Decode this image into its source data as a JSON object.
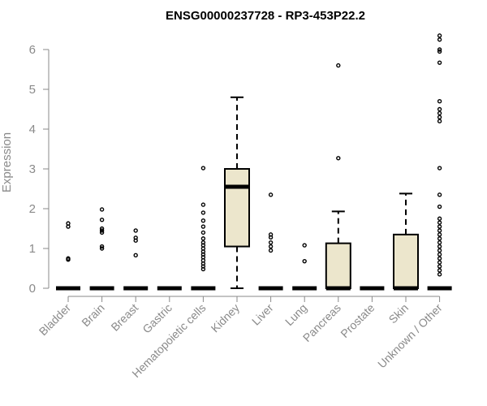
{
  "chart_data": {
    "type": "boxplot",
    "title": "ENSG00000237728 - RP3-453P22.2",
    "xlabel": "",
    "ylabel": "Expression",
    "ylim": [
      0,
      6.5
    ],
    "yticks": [
      0,
      1,
      2,
      3,
      4,
      5,
      6
    ],
    "grid": false,
    "box_fill": "#ece6cc",
    "categories": [
      "Bladder",
      "Brain",
      "Breast",
      "Gastric",
      "Hematopoietic cells",
      "Kidney",
      "Liver",
      "Lung",
      "Pancreas",
      "Prostate",
      "Skin",
      "Unknown / Other"
    ],
    "boxes": [
      {
        "category": "Bladder",
        "q1": 0,
        "median": 0,
        "q3": 0,
        "whisker_low": 0,
        "whisker_high": 0,
        "outliers": [
          0.72,
          0.75,
          1.55,
          1.63
        ]
      },
      {
        "category": "Brain",
        "q1": 0,
        "median": 0,
        "q3": 0,
        "whisker_low": 0,
        "whisker_high": 0,
        "outliers": [
          1.0,
          1.05,
          1.4,
          1.45,
          1.5,
          1.72,
          1.98
        ]
      },
      {
        "category": "Breast",
        "q1": 0,
        "median": 0,
        "q3": 0,
        "whisker_low": 0,
        "whisker_high": 0,
        "outliers": [
          0.83,
          1.2,
          1.27,
          1.45
        ]
      },
      {
        "category": "Gastric",
        "q1": 0,
        "median": 0,
        "q3": 0,
        "whisker_low": 0,
        "whisker_high": 0,
        "outliers": []
      },
      {
        "category": "Hematopoietic cells",
        "q1": 0,
        "median": 0,
        "q3": 0,
        "whisker_low": 0,
        "whisker_high": 0,
        "outliers": [
          0.48,
          0.55,
          0.62,
          0.7,
          0.78,
          0.85,
          0.92,
          1.0,
          1.08,
          1.15,
          1.25,
          1.4,
          1.55,
          1.7,
          1.9,
          2.1,
          3.02
        ]
      },
      {
        "category": "Kidney",
        "q1": 1.05,
        "median": 2.55,
        "q3": 3.0,
        "whisker_low": 0,
        "whisker_high": 4.8,
        "outliers": []
      },
      {
        "category": "Liver",
        "q1": 0,
        "median": 0,
        "q3": 0,
        "whisker_low": 0,
        "whisker_high": 0,
        "outliers": [
          0.95,
          1.05,
          1.15,
          1.28,
          1.35,
          2.35
        ]
      },
      {
        "category": "Lung",
        "q1": 0,
        "median": 0,
        "q3": 0,
        "whisker_low": 0,
        "whisker_high": 0,
        "outliers": [
          0.68,
          1.08
        ]
      },
      {
        "category": "Pancreas",
        "q1": 0,
        "median": 0,
        "q3": 1.13,
        "whisker_low": 0,
        "whisker_high": 1.93,
        "outliers": [
          3.27,
          5.6
        ]
      },
      {
        "category": "Prostate",
        "q1": 0,
        "median": 0,
        "q3": 0,
        "whisker_low": 0,
        "whisker_high": 0,
        "outliers": []
      },
      {
        "category": "Skin",
        "q1": 0,
        "median": 0,
        "q3": 1.35,
        "whisker_low": 0,
        "whisker_high": 2.38,
        "outliers": []
      },
      {
        "category": "Unknown / Other",
        "q1": 0,
        "median": 0,
        "q3": 0,
        "whisker_low": 0,
        "whisker_high": 0,
        "outliers": [
          0.35,
          0.45,
          0.55,
          0.65,
          0.75,
          0.85,
          0.95,
          1.05,
          1.15,
          1.25,
          1.35,
          1.45,
          1.55,
          1.65,
          1.75,
          2.05,
          2.35,
          3.02,
          4.2,
          4.3,
          4.4,
          4.5,
          4.7,
          5.67,
          5.95,
          6.0,
          6.25,
          6.35
        ]
      }
    ]
  }
}
